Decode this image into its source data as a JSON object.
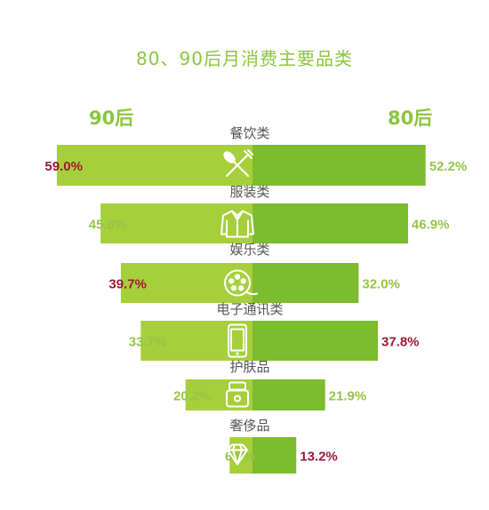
{
  "chart_data": {
    "type": "bar",
    "title": "80、90后月消费主要品类",
    "orientation": "horizontal-butterfly",
    "categories": [
      "餐饮类",
      "服装类",
      "娱乐类",
      "电子通讯类",
      "护肤品",
      "奢侈品"
    ],
    "series": [
      {
        "name": "90后",
        "side": "left",
        "values": [
          59.0,
          45.8,
          39.7,
          33.7,
          20.2,
          6.9
        ],
        "labels": [
          "59.0%",
          "45.8%",
          "39.7%",
          "33.7%",
          "20.2%",
          "6.9%"
        ],
        "highlight": [
          true,
          false,
          true,
          false,
          false,
          false
        ]
      },
      {
        "name": "80后",
        "side": "right",
        "values": [
          52.2,
          46.9,
          32.0,
          37.8,
          21.9,
          13.2
        ],
        "labels": [
          "52.2%",
          "46.9%",
          "32.0%",
          "37.8%",
          "21.9%",
          "13.2%"
        ],
        "highlight": [
          false,
          false,
          false,
          true,
          false,
          true
        ]
      }
    ],
    "icons": [
      "fork-knife-icon",
      "shirt-icon",
      "film-reel-icon",
      "phone-icon",
      "cream-jar-icon",
      "diamond-icon"
    ],
    "colors": {
      "left_bar": "#a6cf3c",
      "right_bar": "#7dbb2f",
      "label": "#96c44a",
      "highlight": "#9b1c35",
      "title": "#8cc63f"
    }
  }
}
